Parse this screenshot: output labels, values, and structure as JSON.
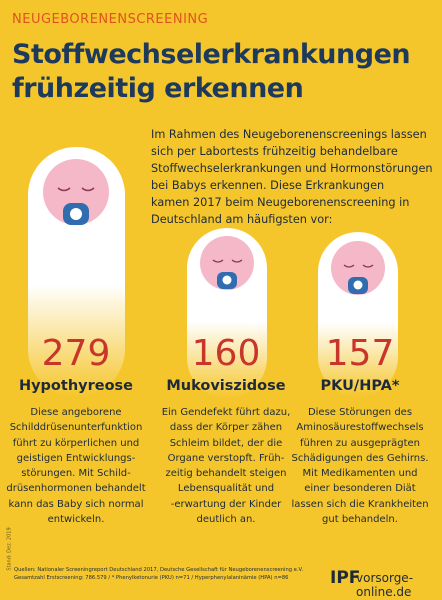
{
  "header": {
    "kicker": "NEUGEBORENENSCREENING",
    "title": [
      "Stoffwechselerkrankungen",
      "frühzeitig erkennen"
    ]
  },
  "intro": [
    "Im Rahmen des Neugeborenenscreenings lassen",
    "sich per Labortests frühzeitig behandelbare",
    "Stoffwechselerkrankungen und Hormonstörungen",
    "bei Babys erkennen. Diese Erkrankungen",
    "kamen 2017 beim Neugeborenenscreening in",
    "Deutschland am häufigsten vor:"
  ],
  "items": [
    {
      "count": 279,
      "name": "Hypothyreose",
      "text": [
        "Diese angeborene",
        "Schilddrüsenunterfunktion",
        "führt zu körperlichen und",
        "geistigen Entwicklungs-",
        "störungen. Mit Schild-",
        "drüsenhormonen behandelt",
        "kann das Baby sich normal",
        "entwickeln."
      ]
    },
    {
      "count": 160,
      "name": "Mukoviszidose",
      "text": [
        "Ein Gendefekt führt dazu,",
        "dass der Körper zähen",
        "Schleim bildet, der die",
        "Organe verstopft. Früh-",
        "zeitig behandelt steigen",
        "Lebensqualität und",
        "-erwartung der Kinder",
        "deutlich an."
      ]
    },
    {
      "count": 157,
      "name": "PKU/HPA*",
      "text": [
        "Diese Störungen des",
        "Aminosäurestoffwechsels",
        "führen zu ausgeprägten",
        "Schädigungen des Gehirns.",
        "Mit Medikamenten und",
        "einer besonderen Diät",
        "lassen sich die Krankheiten",
        "gut behandeln."
      ]
    }
  ],
  "footer": {
    "sources": [
      "Quellen: Nationaler Screeningreport Deutschland 2017, Deutsche Gesellschaft für Neugeborenenscreening e.V.",
      "Gesamtzahl Erstscreening: 786.579 / * Phenylketonurie (PKU) n=71 / Hyperphenylalaninämie (HPA) n=86"
    ],
    "date": "Stand: Dez. 2019",
    "logo": "IPF",
    "url": "vorsorge-online.de"
  }
}
